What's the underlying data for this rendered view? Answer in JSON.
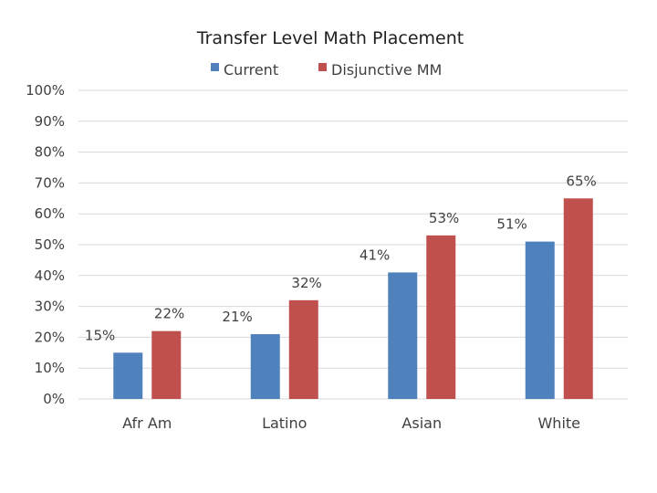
{
  "chart_data": {
    "type": "bar",
    "title": "Transfer Level Math Placement",
    "categories": [
      "Afr Am",
      "Latino",
      "Asian",
      "White"
    ],
    "series": [
      {
        "name": "Current",
        "color": "#4f81bd",
        "values": [
          15,
          21,
          41,
          51
        ]
      },
      {
        "name": "Disjunctive MM",
        "color": "#c0504d",
        "values": [
          22,
          32,
          53,
          65
        ]
      }
    ],
    "data_labels": [
      [
        "15%",
        "21%",
        "41%",
        "51%"
      ],
      [
        "22%",
        "32%",
        "53%",
        "65%"
      ]
    ],
    "y_ticks": [
      0,
      10,
      20,
      30,
      40,
      50,
      60,
      70,
      80,
      90,
      100
    ],
    "y_tick_labels": [
      "0%",
      "10%",
      "20%",
      "30%",
      "40%",
      "50%",
      "60%",
      "70%",
      "80%",
      "90%",
      "100%"
    ],
    "ylim": [
      0,
      100
    ],
    "grid": true,
    "legend_position": "top"
  }
}
